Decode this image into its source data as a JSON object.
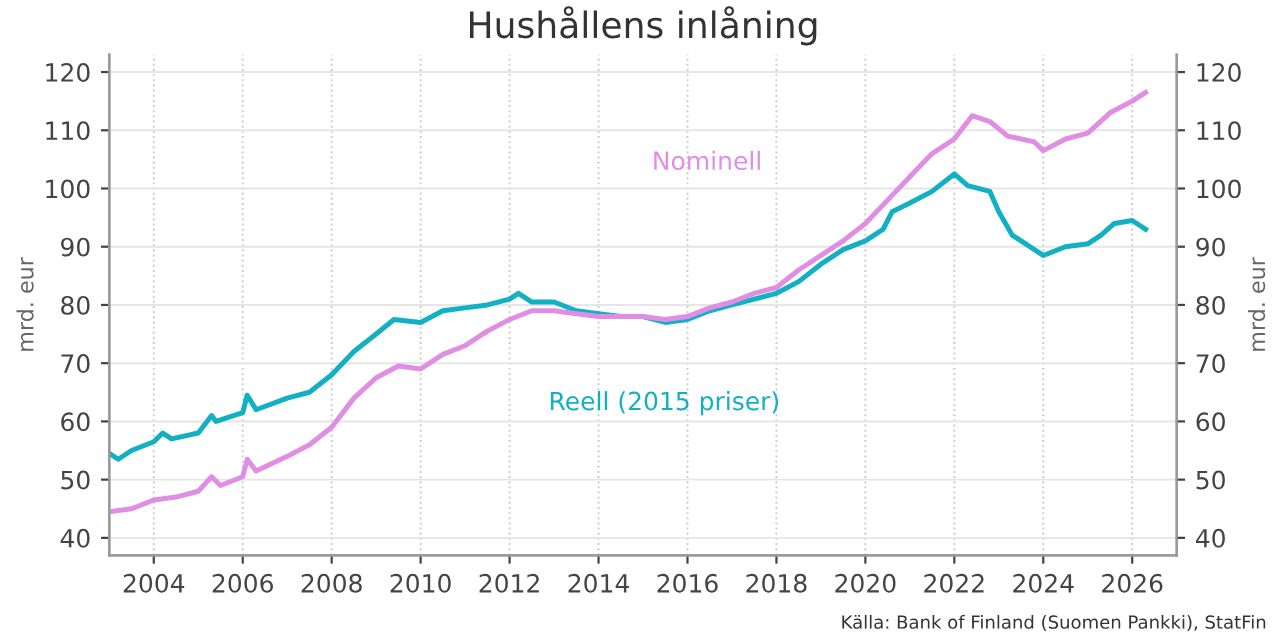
{
  "chart_data": {
    "type": "line",
    "title": "Hushållens inlåning",
    "ylabel": "mrd. eur",
    "y2label": "mrd. eur",
    "annotations": [
      "Källa: Bank of Finland (Suomen Pankki), StatFin"
    ],
    "series": [
      {
        "name": "Nominell",
        "color": "#e08ee4",
        "x": [
          2003.0,
          2003.5,
          2004.0,
          2004.5,
          2005.0,
          2005.3,
          2005.5,
          2006.0,
          2006.1,
          2006.3,
          2007.0,
          2007.5,
          2008.0,
          2008.5,
          2009.0,
          2009.5,
          2010.0,
          2010.5,
          2011.0,
          2011.5,
          2012.0,
          2012.5,
          2013.0,
          2013.5,
          2014.0,
          2015.0,
          2015.5,
          2016.0,
          2016.5,
          2017.0,
          2017.5,
          2018.0,
          2018.5,
          2019.0,
          2019.5,
          2020.0,
          2020.5,
          2021.0,
          2021.5,
          2022.0,
          2022.4,
          2022.8,
          2023.2,
          2023.8,
          2024.0,
          2024.5,
          2025.0,
          2025.5,
          2026.0,
          2026.3
        ],
        "values": [
          44.5,
          45,
          46.5,
          47,
          48,
          50.5,
          49,
          50.5,
          53.5,
          51.5,
          54,
          56,
          59,
          64,
          67.5,
          69.5,
          69,
          71.5,
          73,
          75.5,
          77.5,
          79,
          79,
          78.5,
          78,
          78,
          77.5,
          78,
          79.5,
          80.5,
          82,
          83,
          86,
          88.5,
          91,
          94,
          98,
          102,
          106,
          108.5,
          112.5,
          111.5,
          109,
          108,
          106.5,
          108.5,
          109.5,
          113,
          115,
          116.5
        ]
      },
      {
        "name": "Reell (2015 priser)",
        "color": "#12b0c3",
        "x": [
          2003.0,
          2003.2,
          2003.5,
          2004.0,
          2004.2,
          2004.4,
          2005.0,
          2005.3,
          2005.4,
          2006.0,
          2006.1,
          2006.3,
          2007.0,
          2007.5,
          2008.0,
          2008.5,
          2009.0,
          2009.4,
          2010.0,
          2010.5,
          2011.0,
          2011.5,
          2012.0,
          2012.2,
          2012.5,
          2013.0,
          2013.5,
          2014.0,
          2014.5,
          2015.0,
          2015.5,
          2016.0,
          2016.5,
          2017.0,
          2017.5,
          2018.0,
          2018.5,
          2019.0,
          2019.5,
          2020.0,
          2020.4,
          2020.6,
          2021.0,
          2021.5,
          2022.0,
          2022.3,
          2022.8,
          2023.0,
          2023.3,
          2023.8,
          2024.0,
          2024.5,
          2025.0,
          2025.3,
          2025.6,
          2026.0,
          2026.3
        ],
        "values": [
          54.5,
          53.5,
          55,
          56.5,
          58,
          57,
          58,
          61,
          60,
          61.5,
          64.5,
          62,
          64,
          65,
          68,
          72,
          75,
          77.5,
          77,
          79,
          79.5,
          80,
          81,
          82,
          80.5,
          80.5,
          79,
          78.5,
          78,
          78,
          77,
          77.5,
          79,
          80,
          81,
          82,
          84,
          87,
          89.5,
          91,
          93,
          96,
          97.5,
          99.5,
          102.5,
          100.5,
          99.5,
          96,
          92,
          89.5,
          88.5,
          90,
          90.5,
          92,
          94,
          94.5,
          93
        ]
      }
    ],
    "xlim": [
      2003,
      2027
    ],
    "xticks": [
      2004,
      2006,
      2008,
      2010,
      2012,
      2014,
      2016,
      2018,
      2020,
      2022,
      2024,
      2026
    ],
    "ylim": [
      37,
      123
    ],
    "yticks": [
      40,
      50,
      60,
      70,
      80,
      90,
      100,
      110,
      120
    ],
    "y2lim": [
      37,
      123
    ],
    "y2ticks": [
      40,
      50,
      60,
      70,
      80,
      90,
      100,
      110,
      120
    ],
    "grid": true,
    "legend": false
  }
}
